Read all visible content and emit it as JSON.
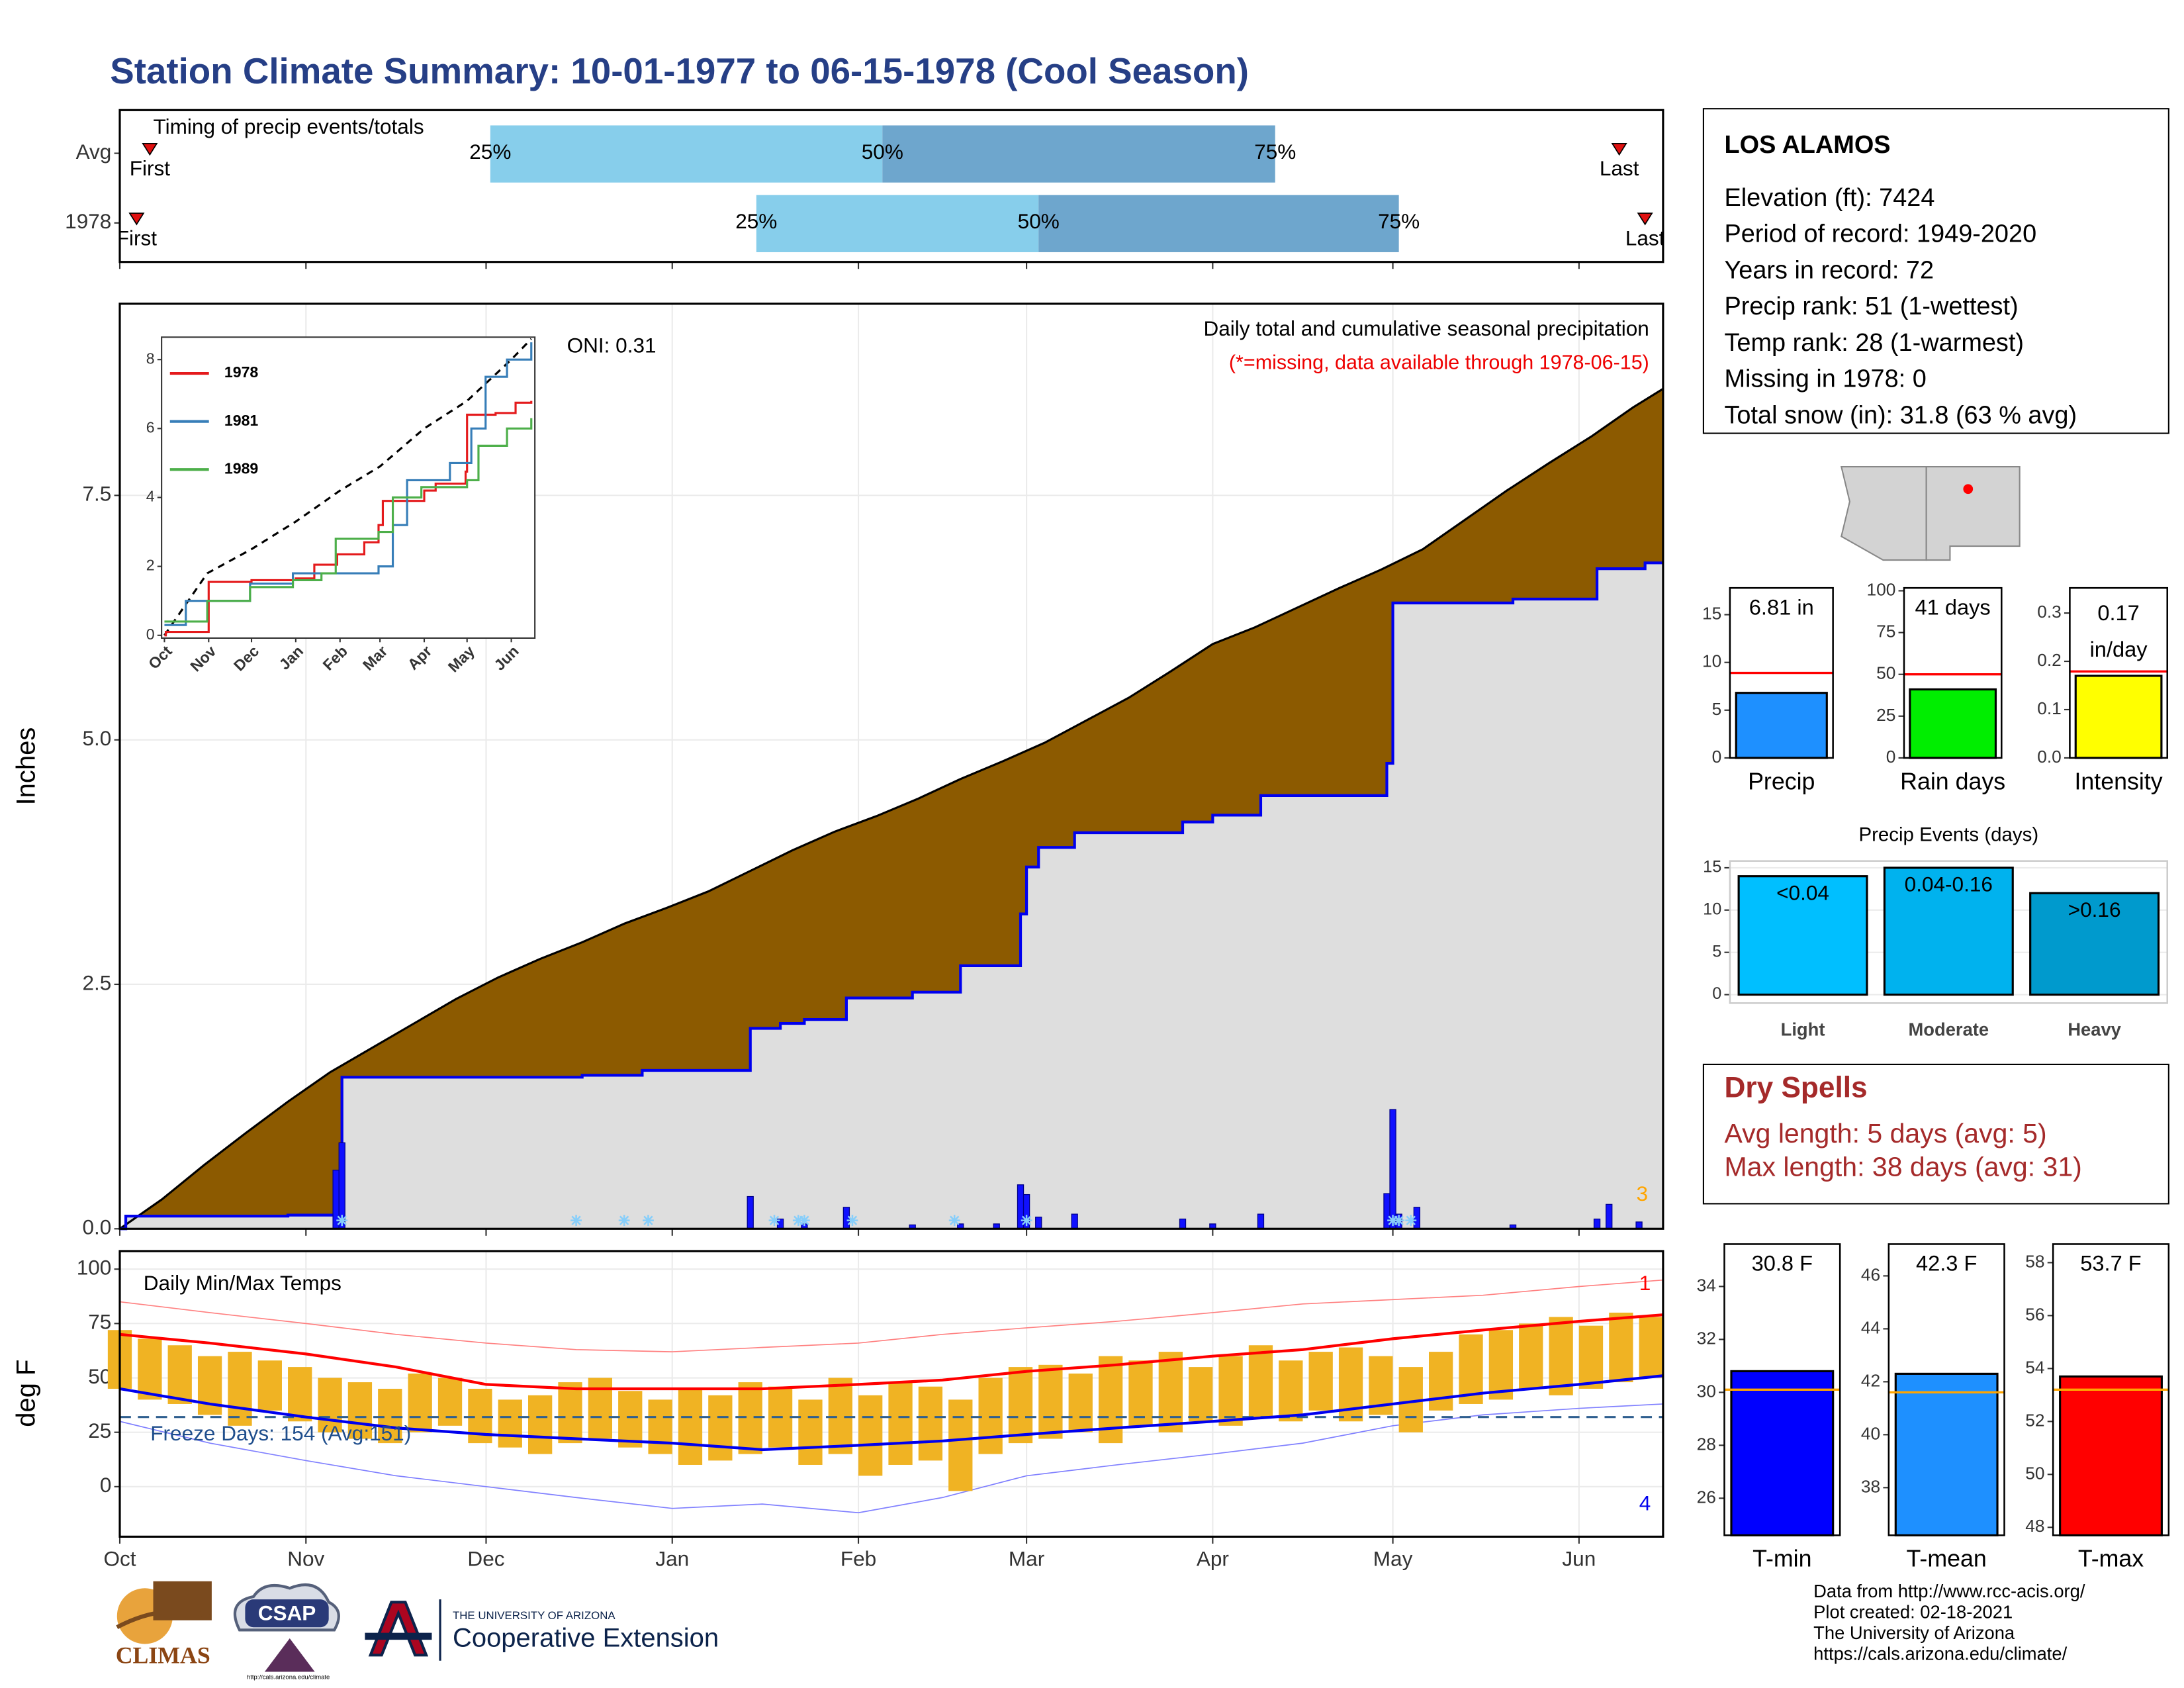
{
  "title": "Station Climate Summary: 10-01-1977 to 06-15-1978 (Cool Season)",
  "chart_data": [
    {
      "type": "timeline",
      "title": "Timing of precip events/totals",
      "categories": [
        "Avg",
        "1978"
      ],
      "series": [
        {
          "name": "First",
          "values": [
            5,
            2.8
          ]
        },
        {
          "name": "25%",
          "values": [
            61.7,
            106
          ]
        },
        {
          "name": "50%",
          "values": [
            127,
            153
          ]
        },
        {
          "name": "75%",
          "values": [
            192.4,
            213
          ]
        },
        {
          "name": "Last",
          "values": [
            249.7,
            254
          ]
        }
      ],
      "colors": [
        "#87ceeb",
        "#6ea6cd"
      ],
      "marker_color": "#e01010",
      "xlim": [
        0,
        257
      ],
      "xticks": [
        0,
        31,
        61,
        92,
        123,
        151,
        182,
        212,
        243
      ]
    },
    {
      "type": "cumulative",
      "title": "Daily total and cumulative seasonal precipitation",
      "note": "(*=missing, data available through 1978-06-15)",
      "oni": "ONI: 0.31",
      "ylabel": "Inches",
      "record_days": 3,
      "avg_cumulative": {
        "color": "#8c5a00",
        "x": [
          0,
          7,
          14,
          21,
          28,
          35,
          42,
          49,
          56,
          63,
          70,
          77,
          84,
          91,
          98,
          105,
          112,
          119,
          126,
          133,
          140,
          147,
          154,
          161,
          168,
          175,
          182,
          189,
          196,
          203,
          210,
          217,
          224,
          231,
          238,
          245,
          252,
          257
        ],
        "values": [
          0,
          0.3,
          0.65,
          0.98,
          1.3,
          1.6,
          1.85,
          2.1,
          2.35,
          2.57,
          2.76,
          2.93,
          3.12,
          3.28,
          3.45,
          3.66,
          3.87,
          4.06,
          4.22,
          4.4,
          4.6,
          4.78,
          4.97,
          5.2,
          5.43,
          5.7,
          5.98,
          6.15,
          6.35,
          6.55,
          6.74,
          6.95,
          7.25,
          7.55,
          7.83,
          8.1,
          8.4,
          8.59
        ]
      },
      "cumulative": {
        "color": "#0000ee",
        "x": [
          0,
          1,
          28,
          36,
          37,
          77,
          87,
          105,
          110,
          114,
          121,
          132,
          140,
          150,
          151,
          153,
          159,
          177,
          182,
          190,
          211,
          212,
          232,
          246,
          254,
          257
        ],
        "values": [
          0,
          0.13,
          0.14,
          0.55,
          1.55,
          1.57,
          1.62,
          2.05,
          2.1,
          2.14,
          2.36,
          2.42,
          2.69,
          3.22,
          3.7,
          3.9,
          4.05,
          4.16,
          4.23,
          4.43,
          4.76,
          6.4,
          6.44,
          6.75,
          6.81,
          6.81
        ]
      },
      "daily": {
        "color": "#1010ff",
        "x": [
          36,
          37,
          105,
          110,
          114,
          121,
          132,
          140,
          146,
          150,
          151,
          153,
          159,
          177,
          182,
          190,
          211,
          212,
          213,
          216,
          232,
          246,
          248,
          253
        ],
        "values": [
          0.6,
          0.88,
          0.33,
          0.1,
          0.05,
          0.22,
          0.04,
          0.05,
          0.05,
          0.45,
          0.35,
          0.12,
          0.15,
          0.1,
          0.05,
          0.15,
          0.36,
          1.22,
          0.15,
          0.22,
          0.04,
          0.1,
          0.25,
          0.07
        ]
      },
      "missing_x": [
        37,
        76,
        84,
        88,
        109,
        113,
        114,
        122,
        139,
        151,
        212,
        213,
        215
      ],
      "xlim": [
        0,
        257
      ],
      "xticks": [
        0,
        31,
        61,
        92,
        123,
        151,
        182,
        212,
        243
      ],
      "ylim": [
        0,
        9.46
      ],
      "yticks": [
        {
          "value": 0,
          "label": "0.0"
        },
        2.5,
        {
          "value": 5,
          "label": "5.0"
        },
        7.5
      ],
      "grid": true
    },
    {
      "type": "line",
      "series": [
        {
          "name": "1978",
          "color": "#e41a1c",
          "x": [
            0,
            1,
            30,
            31,
            61,
            92,
            105,
            121,
            140,
            150,
            153,
            182,
            190,
            211,
            212,
            232,
            246,
            257
          ],
          "values": [
            0,
            0.1,
            0.1,
            1.55,
            1.6,
            1.65,
            2.05,
            2.35,
            2.7,
            3.2,
            3.9,
            4.2,
            4.4,
            4.75,
            6.4,
            6.45,
            6.75,
            6.8
          ]
        },
        {
          "name": "1981",
          "color": "#377eb8",
          "x": [
            0,
            15,
            45,
            60,
            90,
            120,
            150,
            160,
            170,
            185,
            200,
            215,
            225,
            240,
            257
          ],
          "values": [
            0.3,
            1.0,
            1.0,
            1.5,
            1.8,
            1.8,
            2.0,
            3.2,
            4.5,
            4.5,
            5.0,
            6.0,
            7.5,
            8.0,
            8.5
          ]
        },
        {
          "name": "1989",
          "color": "#4daf4a",
          "x": [
            0,
            30,
            60,
            90,
            110,
            120,
            150,
            160,
            180,
            212,
            220,
            240,
            257
          ],
          "values": [
            0.4,
            1.0,
            1.4,
            1.6,
            1.8,
            2.8,
            3.0,
            4.0,
            4.3,
            4.5,
            5.5,
            6.0,
            6.3
          ]
        }
      ],
      "avg": {
        "color": "#000000",
        "x": [
          0,
          30,
          61,
          92,
          123,
          151,
          182,
          212,
          243,
          257
        ],
        "values": [
          0,
          1.8,
          2.5,
          3.3,
          4.2,
          4.9,
          6.0,
          6.8,
          8.0,
          8.6
        ]
      },
      "xlim": [
        -2,
        259.5
      ],
      "xticks": [
        {
          "value": 0,
          "label": "Oct"
        },
        {
          "value": 31,
          "label": "Nov"
        },
        {
          "value": 61,
          "label": "Dec"
        },
        {
          "value": 92,
          "label": "Jan"
        },
        {
          "value": 123,
          "label": "Feb"
        },
        {
          "value": 151,
          "label": "Mar"
        },
        {
          "value": 182,
          "label": "Apr"
        },
        {
          "value": 212,
          "label": "May"
        },
        {
          "value": 243,
          "label": "Jun"
        }
      ],
      "ylim": [
        -0.08,
        8.65
      ],
      "yticks": [
        0,
        2,
        4,
        6,
        8
      ]
    },
    {
      "type": "range_bar",
      "title": "Daily Min/Max Temps",
      "ylabel": "deg F",
      "freeze_label": "Freeze Days: 154 (Avg:151)",
      "freeze_line": 32,
      "record_highs": 1,
      "record_lows": 4,
      "bars": {
        "color": "#f0b323",
        "x": [
          0,
          5,
          10,
          15,
          20,
          25,
          30,
          35,
          40,
          45,
          50,
          55,
          60,
          65,
          70,
          75,
          80,
          85,
          90,
          95,
          100,
          105,
          110,
          115,
          120,
          125,
          130,
          135,
          140,
          145,
          150,
          155,
          160,
          165,
          170,
          175,
          180,
          185,
          190,
          195,
          200,
          205,
          210,
          215,
          220,
          225,
          230,
          235,
          240,
          245,
          250,
          255
        ],
        "min": [
          45,
          40,
          38,
          33,
          28,
          35,
          30,
          25,
          22,
          20,
          25,
          28,
          20,
          18,
          15,
          20,
          22,
          18,
          15,
          10,
          12,
          15,
          18,
          10,
          15,
          5,
          10,
          12,
          -2,
          15,
          20,
          22,
          25,
          20,
          28,
          25,
          30,
          28,
          32,
          30,
          35,
          30,
          33,
          25,
          35,
          38,
          40,
          45,
          42,
          45,
          48,
          50
        ],
        "max": [
          72,
          68,
          65,
          60,
          62,
          58,
          55,
          50,
          48,
          45,
          52,
          50,
          45,
          40,
          42,
          48,
          50,
          44,
          40,
          45,
          42,
          48,
          46,
          40,
          50,
          42,
          48,
          46,
          40,
          50,
          55,
          56,
          52,
          60,
          58,
          62,
          55,
          60,
          65,
          58,
          62,
          64,
          60,
          55,
          62,
          70,
          72,
          75,
          78,
          74,
          80,
          78
        ]
      },
      "lines_x": [
        0,
        15,
        31,
        46,
        61,
        76,
        92,
        107,
        123,
        137,
        151,
        166,
        182,
        197,
        212,
        227,
        243,
        257
      ],
      "avg_max": [
        70,
        66,
        61,
        55,
        47,
        45,
        45,
        45,
        47,
        49,
        53,
        56,
        60,
        63,
        68,
        72,
        76,
        79
      ],
      "avg_min": [
        45,
        38,
        32,
        27,
        24,
        22,
        20,
        17,
        19,
        21,
        24,
        27,
        30,
        33,
        38,
        43,
        47,
        51
      ],
      "rec_max": [
        85,
        80,
        75,
        70,
        66,
        63,
        62,
        64,
        66,
        70,
        73,
        76,
        80,
        84,
        86,
        88,
        92,
        95
      ],
      "rec_min": [
        30,
        20,
        12,
        5,
        0,
        -5,
        -10,
        -8,
        -12,
        -5,
        5,
        10,
        15,
        20,
        28,
        33,
        36,
        38
      ],
      "xlim": [
        0,
        257
      ],
      "xticks": [
        {
          "value": 0,
          "label": "Oct"
        },
        {
          "value": 31,
          "label": "Nov"
        },
        {
          "value": 61,
          "label": "Dec"
        },
        {
          "value": 92,
          "label": "Jan"
        },
        {
          "value": 123,
          "label": "Feb"
        },
        {
          "value": 151,
          "label": "Mar"
        },
        {
          "value": 182,
          "label": "Apr"
        },
        {
          "value": 212,
          "label": "May"
        },
        {
          "value": 243,
          "label": "Jun"
        }
      ],
      "ylim": [
        -23,
        108.3
      ],
      "yticks": [
        0,
        25,
        50,
        75,
        100
      ],
      "grid": true
    },
    {
      "type": "bar",
      "categories": [
        "Precip"
      ],
      "values": [
        6.81
      ],
      "value_labels": [
        "6.81 in"
      ],
      "avg": 8.9,
      "avg_color": "#ff0000",
      "colors": [
        "#1e90ff"
      ],
      "ylim": [
        0,
        17.8
      ],
      "yticks": [
        0,
        5,
        10,
        15
      ]
    },
    {
      "type": "bar",
      "categories": [
        "Rain days"
      ],
      "values": [
        41
      ],
      "value_labels": [
        "41 days"
      ],
      "avg": 50,
      "avg_color": "#ff0000",
      "colors": [
        "#00ee00"
      ],
      "ylim": [
        0,
        101.7
      ],
      "yticks": [
        0,
        25,
        50,
        75,
        100
      ]
    },
    {
      "type": "bar",
      "categories": [
        "Intensity"
      ],
      "values": [
        0.17
      ],
      "value_labels": [
        "0.17 in/day"
      ],
      "avg": 0.179,
      "avg_color": "#ff0000",
      "colors": [
        "#ffff00"
      ],
      "ylim": [
        0,
        0.352
      ],
      "yticks": [
        {
          "value": 0,
          "label": "0.0"
        },
        0.1,
        0.2,
        0.3
      ]
    },
    {
      "type": "bar",
      "title": "Precip Events (days)",
      "categories": [
        "Light",
        "Moderate",
        "Heavy"
      ],
      "values": [
        14,
        15,
        12
      ],
      "bar_labels": [
        "<0.04",
        "0.04-0.16",
        ">0.16"
      ],
      "colors": [
        "#00bfff",
        "#00b2ee",
        "#009acd"
      ],
      "ylim": [
        -1,
        15.8
      ],
      "yticks": [
        0,
        5,
        10,
        15
      ],
      "grid": true
    },
    {
      "type": "bar",
      "categories": [
        "T-min"
      ],
      "values": [
        30.8
      ],
      "value_labels": [
        "30.8 F"
      ],
      "avg": 30.1,
      "avg_color": "#ffa500",
      "colors": [
        "#0000ff"
      ],
      "ylim": [
        24.6,
        35.6
      ],
      "yticks": [
        26,
        28,
        30,
        32,
        34
      ]
    },
    {
      "type": "bar",
      "categories": [
        "T-mean"
      ],
      "values": [
        42.3
      ],
      "value_labels": [
        "42.3 F"
      ],
      "avg": 41.6,
      "avg_color": "#ffa500",
      "colors": [
        "#1e90ff"
      ],
      "ylim": [
        36.2,
        47.2
      ],
      "yticks": [
        38,
        40,
        42,
        44,
        46
      ]
    },
    {
      "type": "bar",
      "categories": [
        "T-max"
      ],
      "values": [
        53.7
      ],
      "value_labels": [
        "53.7 F"
      ],
      "avg": 53.2,
      "avg_color": "#ffa500",
      "colors": [
        "#ff0000"
      ],
      "ylim": [
        47.7,
        58.7
      ],
      "yticks": [
        48,
        50,
        52,
        54,
        56,
        58
      ]
    }
  ],
  "station": {
    "name": "LOS ALAMOS",
    "lines": [
      "Elevation (ft): 7424",
      "Period of record: 1949-2020",
      "Years in record: 72",
      "Precip rank: 51 (1-wettest)",
      "Temp rank: 28 (1-warmest)",
      "Missing in 1978: 0",
      "Total snow (in): 31.8 (63 % avg)"
    ]
  },
  "dry_spells": {
    "title": "Dry Spells",
    "lines": [
      "Avg length: 5 days (avg: 5)",
      "Max length: 38 days (avg: 31)"
    ]
  },
  "logos": {
    "climas": "CLIMAS",
    "csap": "CSAP",
    "csap_url": "http://cals.arizona.edu/climate",
    "university": "THE UNIVERSITY OF ARIZONA",
    "extension": "Cooperative Extension"
  },
  "footer": [
    "Data from http://www.rcc-acis.org/",
    "Plot created: 02-18-2021",
    "The University of Arizona",
    "https://cals.arizona.edu/climate/"
  ]
}
